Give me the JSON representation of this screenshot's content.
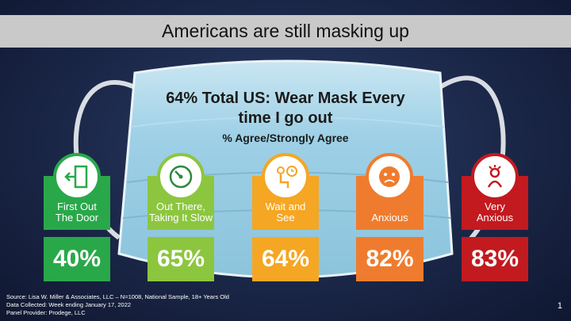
{
  "title": "Americans are still masking up",
  "headline": "64% Total US: Wear Mask Every time I go out",
  "headline_line1": "64% Total US: Wear Mask Every",
  "headline_line2": "time I go out",
  "subhead": "% Agree/Strongly Agree",
  "segments": [
    {
      "label_line1": "First Out",
      "label_line2": "The Door",
      "value": "40%",
      "color": "#29a84a",
      "icon": "door-exit-icon"
    },
    {
      "label_line1": "Out There,",
      "label_line2": "Taking It Slow",
      "value": "65%",
      "color": "#8cc63f",
      "icon": "speedometer-icon"
    },
    {
      "label_line1": "Wait and",
      "label_line2": "See",
      "value": "64%",
      "color": "#f5a623",
      "icon": "waiting-person-clock-icon"
    },
    {
      "label_line1": "Anxious",
      "label_line2": "",
      "value": "82%",
      "color": "#ef7c2e",
      "icon": "worried-face-icon"
    },
    {
      "label_line1": "Very",
      "label_line2": "Anxious",
      "value": "83%",
      "color": "#c21a1f",
      "icon": "stressed-person-icon"
    }
  ],
  "footer": {
    "source": "Source: Lisa W. Miller & Associates, LLC  –  N=1008,  National Sample, 18+ Years Old",
    "collected": "Data Collected: Week ending January 17, 2022",
    "panel": "Panel Provider:  Prodege, LLC"
  },
  "page_number": "1"
}
